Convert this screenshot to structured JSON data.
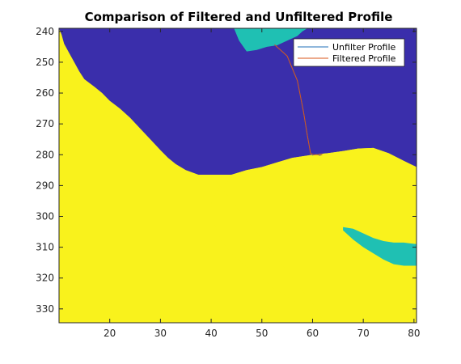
{
  "chart_data": {
    "type": "heatmap",
    "title": "Comparison of Filtered and Unfiltered Profile",
    "xlabel": "",
    "ylabel": "",
    "xlim": [
      10,
      80.5
    ],
    "ylim": [
      239,
      334.5
    ],
    "y_reversed": true,
    "x_ticks": [
      20,
      30,
      40,
      50,
      60,
      70,
      80
    ],
    "y_ticks": [
      240,
      250,
      260,
      270,
      280,
      290,
      300,
      310,
      320,
      330
    ],
    "colormap": {
      "background": "#3a2eab",
      "ridge": "#f9f21c",
      "lower_left_region": "#f9f21c",
      "pocket": "#1fc0b3"
    },
    "legend": {
      "position": "top-right"
    },
    "series": [
      {
        "name": "Unfilter Profile",
        "color": "#1f6fba",
        "x": [
          52.5,
          55,
          57,
          58.2,
          59,
          59.6,
          60,
          60.8,
          61.4,
          61.9
        ],
        "y": [
          244.3,
          248,
          256,
          266,
          274,
          279.4,
          280.1,
          279.8,
          280.2,
          279.9
        ]
      },
      {
        "name": "Filtered Profile",
        "color": "#d9541a",
        "x": [
          52.5,
          55,
          57,
          58.2,
          59,
          59.6,
          60.3,
          61.2,
          61.9
        ],
        "y": [
          244.3,
          248,
          256,
          266,
          274,
          279.6,
          280.0,
          280.0,
          279.9
        ]
      }
    ],
    "regions": {
      "lower_left_boundary": [
        [
          10,
          239
        ],
        [
          10.5,
          241
        ],
        [
          11,
          244
        ],
        [
          12,
          247
        ],
        [
          13,
          250
        ],
        [
          14,
          253
        ],
        [
          15,
          255.5
        ],
        [
          17,
          258
        ],
        [
          18.5,
          260
        ],
        [
          20,
          262.5
        ],
        [
          22,
          265
        ],
        [
          24,
          268
        ],
        [
          26,
          271.5
        ],
        [
          28,
          275
        ],
        [
          30,
          278.5
        ],
        [
          31.5,
          281
        ],
        [
          33,
          283
        ],
        [
          35,
          285
        ],
        [
          37.5,
          286.5
        ],
        [
          40,
          286.5
        ],
        [
          44,
          286.5
        ],
        [
          47,
          285
        ],
        [
          50,
          284
        ],
        [
          53,
          282.5
        ],
        [
          56,
          281
        ],
        [
          60,
          280
        ],
        [
          63,
          279.5
        ],
        [
          66,
          278.8
        ],
        [
          69,
          278
        ],
        [
          72,
          277.8
        ],
        [
          75,
          279.5
        ],
        [
          78,
          282
        ],
        [
          80.5,
          284
        ]
      ],
      "ridge_lower_edge": [
        [
          80.5,
          285.5
        ],
        [
          78,
          283.5
        ],
        [
          75,
          281
        ],
        [
          72,
          279.5
        ],
        [
          69,
          279.5
        ],
        [
          66,
          280.5
        ],
        [
          63,
          281
        ],
        [
          60,
          281.5
        ],
        [
          56,
          282.5
        ],
        [
          53,
          284
        ],
        [
          50,
          285.5
        ],
        [
          47,
          286.5
        ],
        [
          44,
          288
        ],
        [
          42,
          290
        ],
        [
          41,
          292
        ],
        [
          40,
          296
        ],
        [
          40.5,
          302
        ],
        [
          42,
          308
        ],
        [
          44,
          312
        ],
        [
          46,
          315
        ],
        [
          48,
          317.5
        ],
        [
          50,
          320
        ],
        [
          52,
          323
        ],
        [
          54,
          325
        ],
        [
          56,
          327
        ],
        [
          58,
          329
        ],
        [
          60,
          331
        ],
        [
          62,
          333
        ],
        [
          63,
          334.5
        ]
      ],
      "top_pocket": [
        [
          44.5,
          239
        ],
        [
          45.5,
          243
        ],
        [
          47,
          246.5
        ],
        [
          49,
          246
        ],
        [
          51,
          245
        ],
        [
          53,
          244.5
        ],
        [
          55,
          243
        ],
        [
          57,
          241.5
        ],
        [
          58,
          240
        ],
        [
          59,
          239
        ]
      ],
      "mid_pocket": [
        [
          66,
          303.5
        ],
        [
          68,
          304
        ],
        [
          70,
          305.5
        ],
        [
          72,
          307
        ],
        [
          74,
          308
        ],
        [
          76,
          308.5
        ],
        [
          78,
          308.5
        ],
        [
          80.5,
          309
        ],
        [
          80.5,
          316
        ],
        [
          78,
          316
        ],
        [
          76,
          315.5
        ],
        [
          74,
          314
        ],
        [
          72,
          312
        ],
        [
          70,
          310
        ],
        [
          68,
          307.5
        ],
        [
          66,
          304.5
        ]
      ]
    }
  }
}
